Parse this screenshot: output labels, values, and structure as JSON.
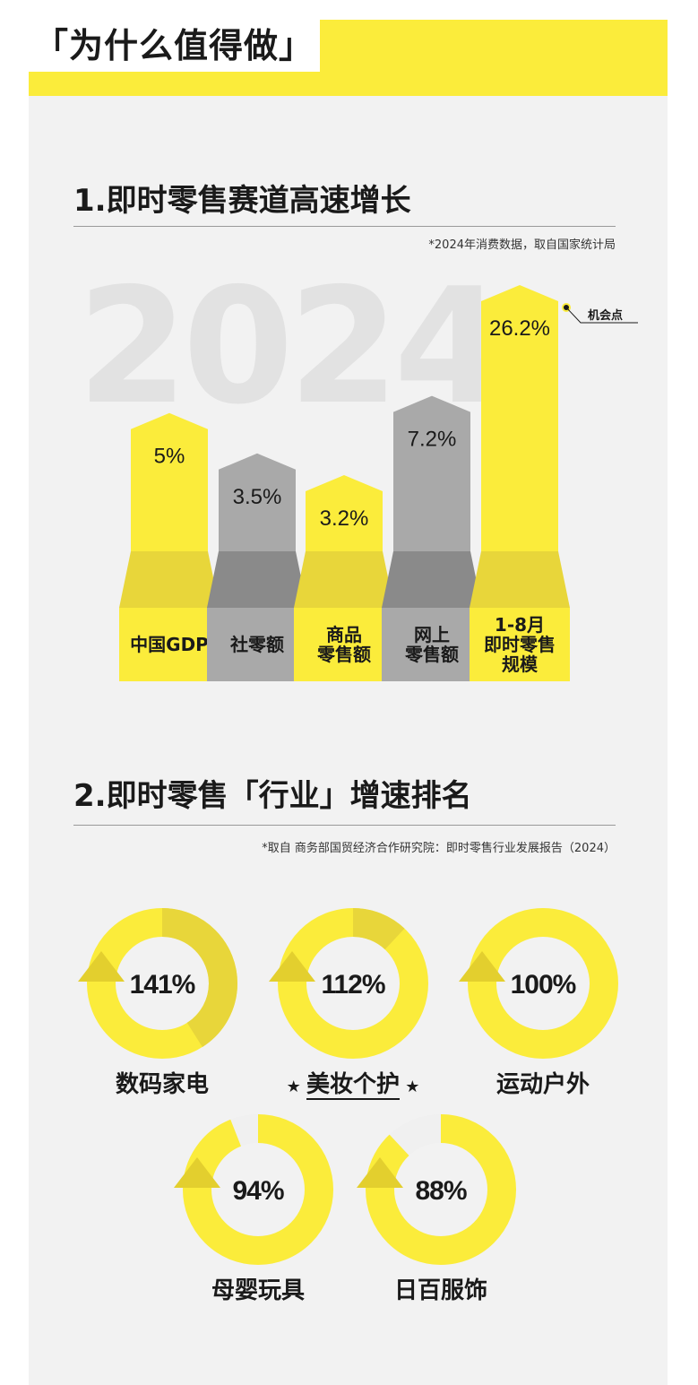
{
  "header": {
    "title": "「为什么值得做」"
  },
  "section1": {
    "title": "1.即时零售赛道高速增长",
    "note": "*2024年消费数据，取自国家统计局",
    "background_year": "2024",
    "callout": "机会点"
  },
  "section2": {
    "title": "2.即时零售「行业」增速排名",
    "note": "*取自 商务部国贸经济合作研究院：即时零售行业发展报告（2024）",
    "star": "★"
  },
  "colors": {
    "yellow": "#fbec3b",
    "yellow_dark": "#e8d63a",
    "gray": "#a9a9a9",
    "gray_dark": "#8a8a8a",
    "ring_track": "#f0f0f0"
  },
  "chart_data": [
    {
      "type": "bar",
      "title": "1.即时零售赛道高速增长",
      "unit": "%",
      "categories": [
        "中国GDP",
        "社零额",
        "商品零售额",
        "网上零售额",
        "1-8月即时零售规模"
      ],
      "category_lines": [
        [
          "中国GDP"
        ],
        [
          "社零额"
        ],
        [
          "商品",
          "零售额"
        ],
        [
          "网上",
          "零售额"
        ],
        [
          "1-8月",
          "即时零售",
          "规模"
        ]
      ],
      "values": [
        5,
        3.5,
        3.2,
        7.2,
        26.2
      ],
      "value_labels": [
        "5%",
        "3.5%",
        "3.2%",
        "7.2%",
        "26.2%"
      ],
      "bar_colors": [
        "yellow",
        "gray",
        "yellow",
        "gray",
        "yellow"
      ],
      "annotation": "机会点"
    },
    {
      "type": "donut",
      "title": "2.即时零售「行业」增速排名",
      "unit": "%",
      "items": [
        {
          "label": "数码家电",
          "value": 141,
          "value_label": "141%",
          "highlight": false
        },
        {
          "label": "美妆个护",
          "value": 112,
          "value_label": "112%",
          "highlight": true
        },
        {
          "label": "运动户外",
          "value": 100,
          "value_label": "100%",
          "highlight": false
        },
        {
          "label": "母婴玩具",
          "value": 94,
          "value_label": "94%",
          "highlight": false
        },
        {
          "label": "日百服饰",
          "value": 88,
          "value_label": "88%",
          "highlight": false
        }
      ]
    }
  ]
}
